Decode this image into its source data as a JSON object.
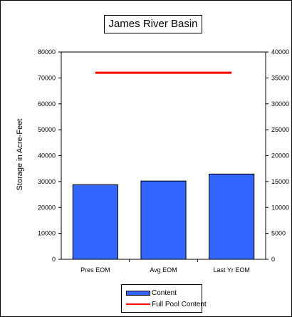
{
  "chart_data": {
    "type": "bar",
    "title": "James River Basin",
    "xlabel": "",
    "ylabel": "Storage in Acre-Feet",
    "categories": [
      "Pres EOM",
      "Avg EOM",
      "Last Yr EOM"
    ],
    "series": [
      {
        "name": "Content",
        "type": "bar",
        "values": [
          28800,
          30200,
          32900
        ],
        "color": "#3366ff"
      },
      {
        "name": "Full Pool Content",
        "type": "line",
        "values": [
          72000,
          72000,
          72000
        ],
        "color": "#ff0000"
      }
    ],
    "ylim": [
      0,
      80000
    ],
    "y2lim": [
      0,
      40000
    ],
    "yticks": [
      "0",
      "10000",
      "20000",
      "30000",
      "40000",
      "50000",
      "60000",
      "70000",
      "80000"
    ],
    "y2ticks": [
      "0",
      "5000",
      "10000",
      "15000",
      "20000",
      "25000",
      "30000",
      "35000",
      "40000"
    ],
    "grid": false,
    "legend": "bottom"
  }
}
